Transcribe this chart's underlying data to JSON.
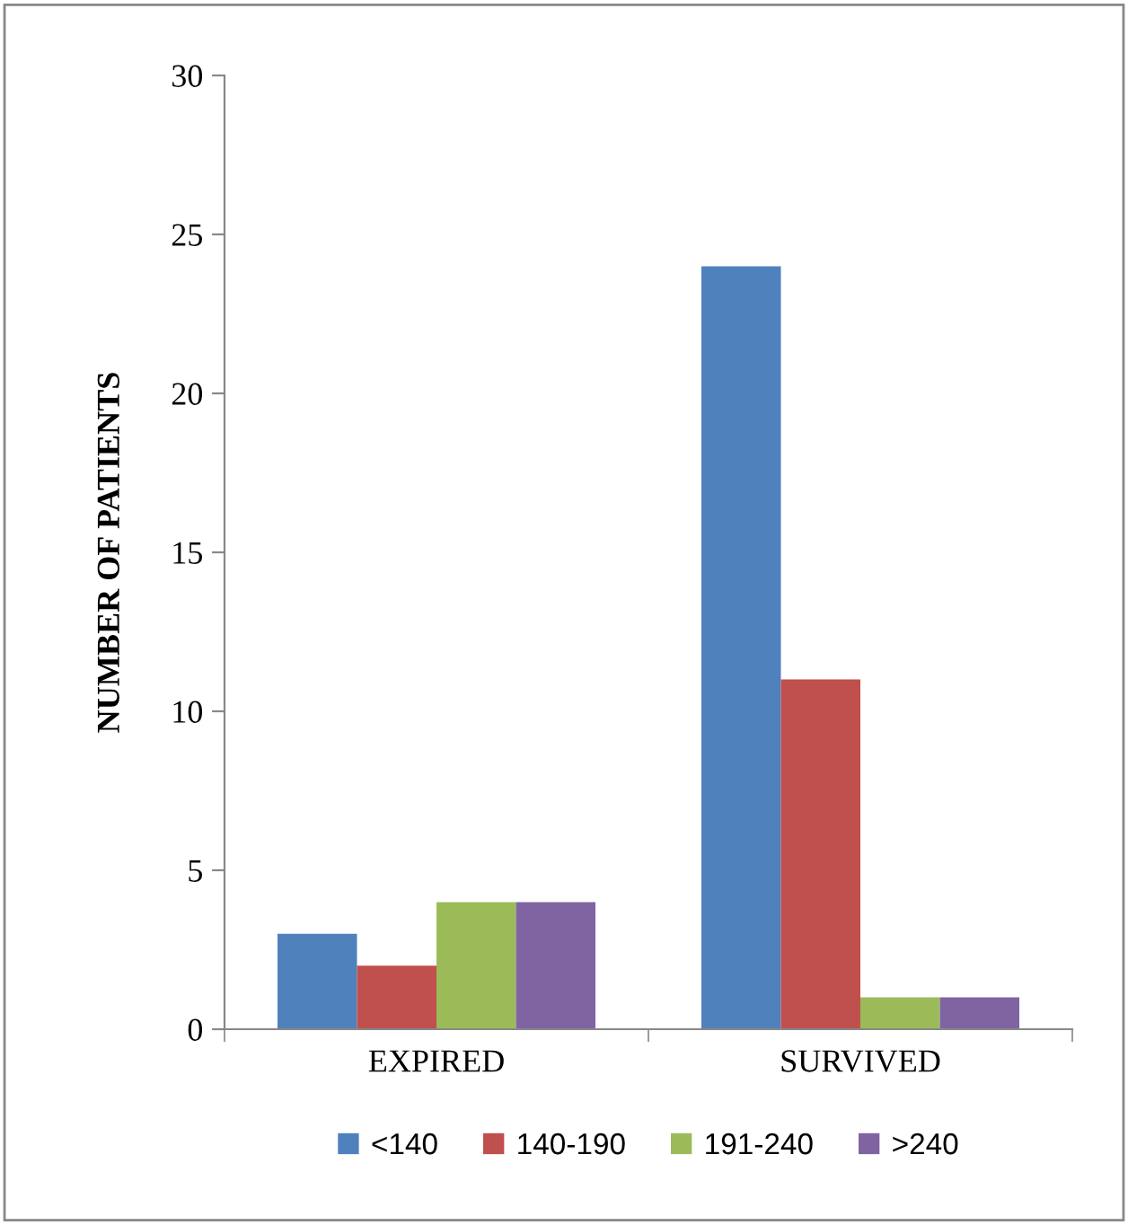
{
  "chart_data": {
    "type": "bar",
    "ylabel": "NUMBER OF PATIENTS",
    "categories": [
      "EXPIRED",
      "SURVIVED"
    ],
    "series": [
      {
        "name": "<140",
        "color": "#4f81bd",
        "values": [
          3,
          24
        ]
      },
      {
        "name": "140-190",
        "color": "#c0504d",
        "values": [
          2,
          11
        ]
      },
      {
        "name": "191-240",
        "color": "#9bbb59",
        "values": [
          4,
          1
        ]
      },
      {
        "name": ">240",
        "color": "#8064a2",
        "values": [
          4,
          1
        ]
      }
    ],
    "ylim": [
      0,
      30
    ],
    "yticks": [
      0,
      5,
      10,
      15,
      20,
      25,
      30
    ],
    "grid": false,
    "legend": "bottom"
  }
}
